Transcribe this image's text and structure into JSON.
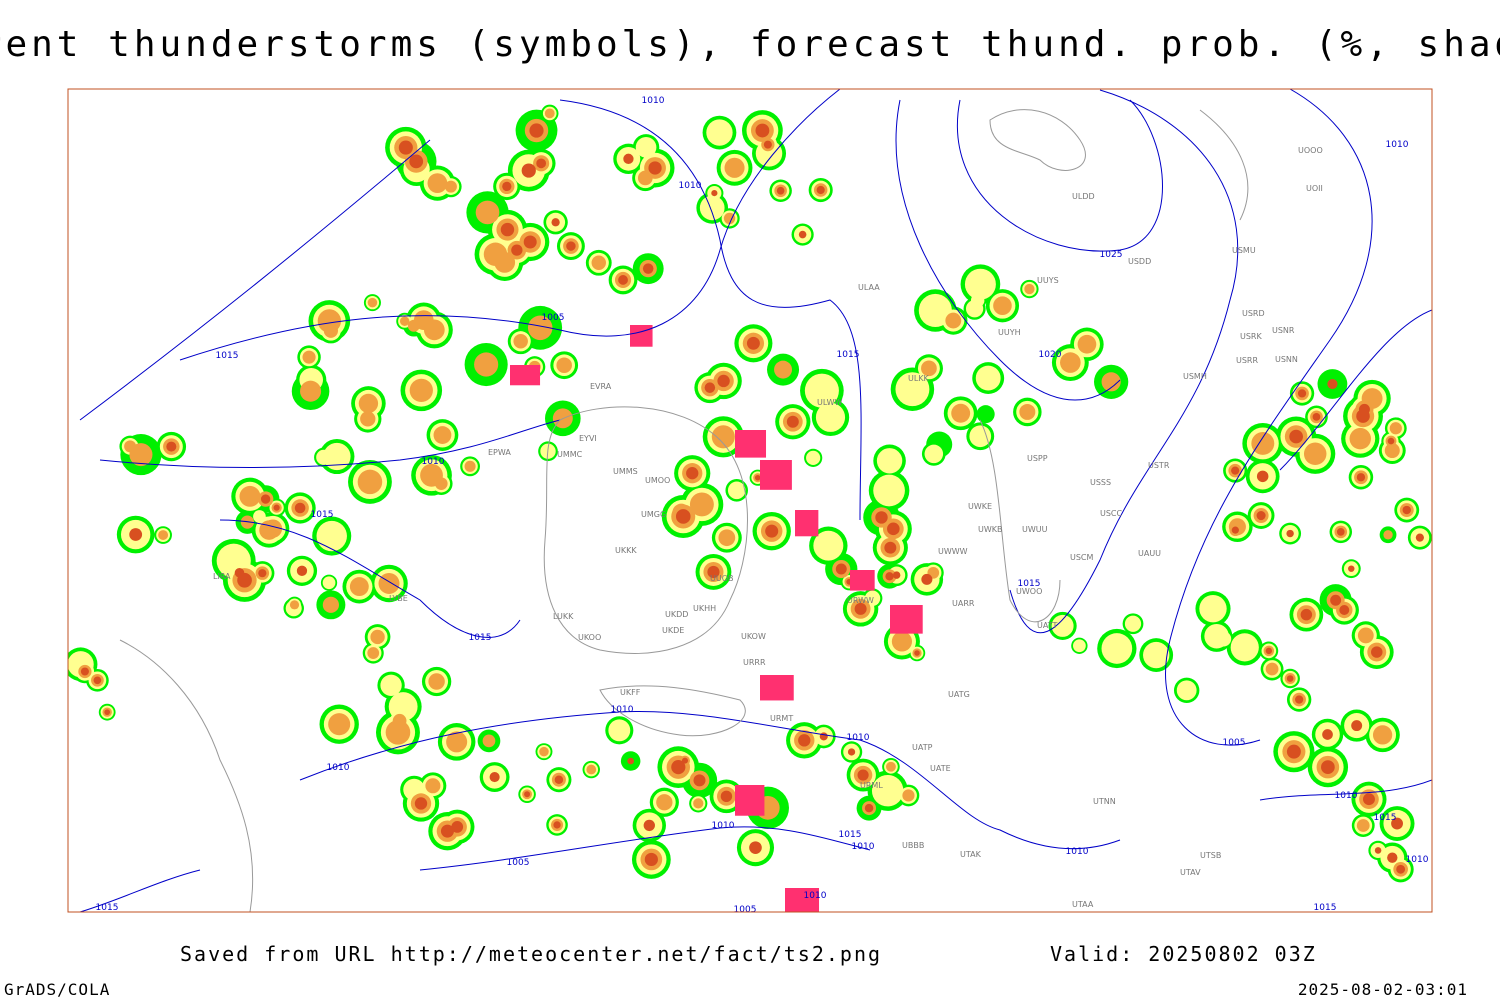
{
  "header": {
    "title": "Current thunderstorms (symbols), forecast thund. prob. (%, shaded)"
  },
  "map": {
    "isobar_labels": [
      "1010",
      "1010",
      "1005",
      "1015",
      "1010",
      "1015",
      "1015",
      "1025",
      "1020",
      "1010",
      "1015",
      "1015",
      "1010",
      "1010",
      "1005",
      "1010",
      "1010",
      "1015",
      "1010",
      "1005",
      "1010",
      "1010",
      "1015",
      "1010",
      "1015",
      "1010",
      "1015",
      "1005"
    ],
    "stations": [
      "ULDD",
      "USDD",
      "USMU",
      "UUYS",
      "ULAA",
      "UOOO",
      "UOII",
      "USRD",
      "USNR",
      "USRK",
      "USRR",
      "USNN",
      "UUYH",
      "USMH",
      "ULKK",
      "ULWW",
      "USPP",
      "USTR",
      "USSS",
      "USCC",
      "UWKE",
      "UWKB",
      "UWUU",
      "UWWW",
      "USCM",
      "UAUU",
      "UWOO",
      "UATT",
      "UARR",
      "UATG",
      "UATE",
      "UATP",
      "UTNN",
      "UTAK",
      "UBBB",
      "UTSB",
      "UTAV",
      "UTAA",
      "UMMS",
      "UMOO",
      "UMGG",
      "UKKK",
      "UUOB",
      "UKHH",
      "UKDD",
      "UKDE",
      "UKOW",
      "UKOO",
      "LUKK",
      "UMMC",
      "URRR",
      "URMT",
      "URML",
      "URWW",
      "UKFF",
      "LYBE",
      "LIRA",
      "EPWA",
      "EYVI",
      "EVRA"
    ]
  },
  "footer": {
    "source": "Saved from URL http://meteocenter.net/fact/ts2.png",
    "valid": "Valid: 20250802 03Z",
    "software": "GrADS/COLA",
    "timestamp": "2025-08-02-03:01"
  }
}
